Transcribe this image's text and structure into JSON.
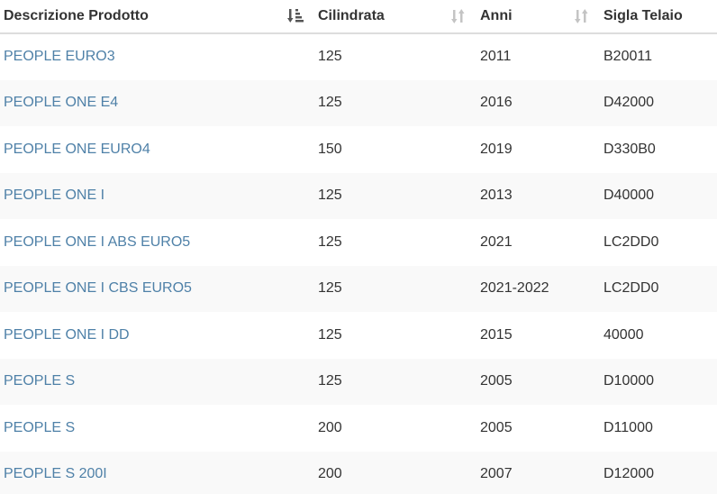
{
  "table": {
    "headers": {
      "descrizione": "Descrizione Prodotto",
      "cilindrata": "Cilindrata",
      "anni": "Anni",
      "sigla": "Sigla Telaio"
    },
    "icons": {
      "descrizione_sort": "sort-amount-desc-icon",
      "cilindrata_sort": "sort-icon",
      "anni_sort": "sort-icon"
    },
    "colors": {
      "link": "#4f81a8",
      "stripe": "#f9f9f9",
      "text": "#333333",
      "icon_active": "#555555",
      "icon_inactive": "#c4c4c4"
    },
    "rows": [
      {
        "descrizione": "PEOPLE EURO3",
        "cilindrata": "125",
        "anni": "2011",
        "sigla": "B20011"
      },
      {
        "descrizione": "PEOPLE ONE E4",
        "cilindrata": "125",
        "anni": "2016",
        "sigla": "D42000"
      },
      {
        "descrizione": "PEOPLE ONE EURO4",
        "cilindrata": "150",
        "anni": "2019",
        "sigla": "D330B0"
      },
      {
        "descrizione": "PEOPLE ONE I",
        "cilindrata": "125",
        "anni": "2013",
        "sigla": "D40000"
      },
      {
        "descrizione": "PEOPLE ONE I ABS EURO5",
        "cilindrata": "125",
        "anni": "2021",
        "sigla": "LC2DD0"
      },
      {
        "descrizione": "PEOPLE ONE I CBS EURO5",
        "cilindrata": "125",
        "anni": "2021-2022",
        "sigla": "LC2DD0"
      },
      {
        "descrizione": "PEOPLE ONE I DD",
        "cilindrata": "125",
        "anni": "2015",
        "sigla": "40000"
      },
      {
        "descrizione": "PEOPLE S",
        "cilindrata": "125",
        "anni": "2005",
        "sigla": "D10000"
      },
      {
        "descrizione": "PEOPLE S",
        "cilindrata": "200",
        "anni": "2005",
        "sigla": "D11000"
      },
      {
        "descrizione": "PEOPLE S 200I",
        "cilindrata": "200",
        "anni": "2007",
        "sigla": "D12000"
      }
    ]
  }
}
